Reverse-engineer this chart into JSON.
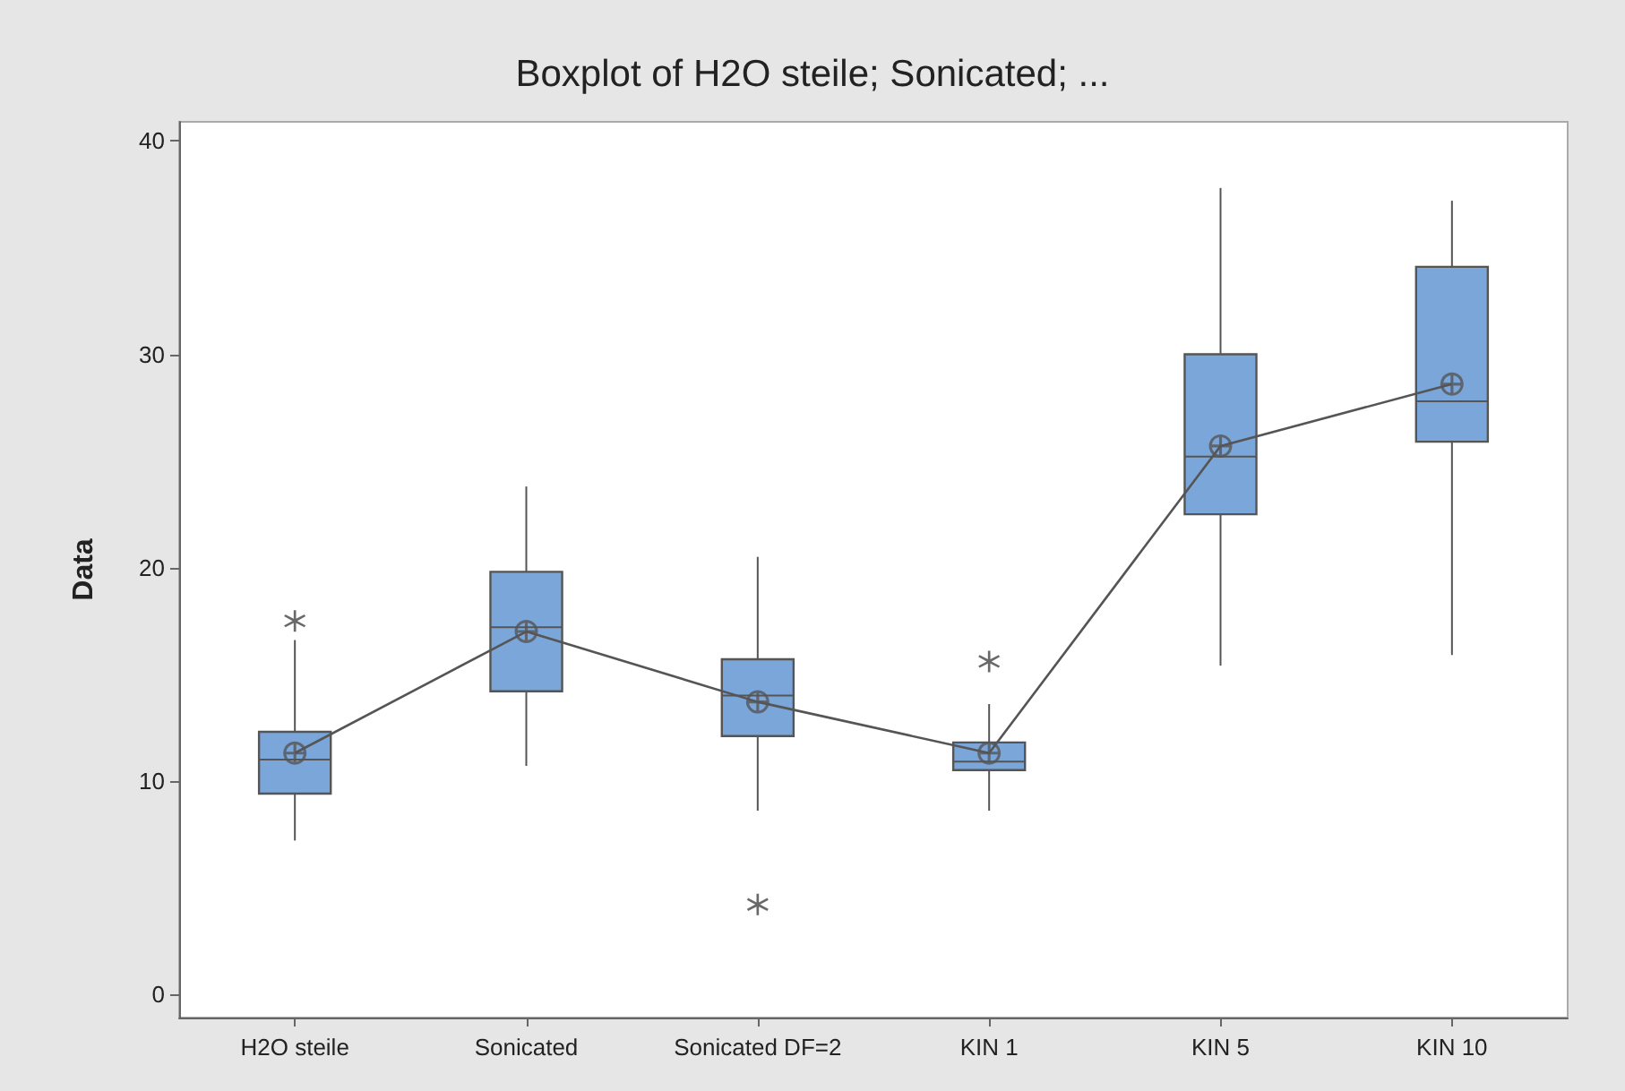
{
  "chart_data": {
    "type": "box",
    "title": "Boxplot of H2O steile; Sonicated; ...",
    "ylabel": "Data",
    "categories": [
      "H2O steile",
      "Sonicated",
      "Sonicated DF=2",
      "KIN 1",
      "KIN 5",
      "KIN 10"
    ],
    "color": "#7ba6d9",
    "boxes": [
      {
        "low": 7.2,
        "q1": 9.4,
        "median": 11.0,
        "q3": 12.3,
        "high": 16.6,
        "mean": 11.3,
        "outliers": [
          17.5
        ]
      },
      {
        "low": 10.7,
        "q1": 14.2,
        "median": 17.2,
        "q3": 19.8,
        "high": 23.8,
        "mean": 17.0
      },
      {
        "low": 8.6,
        "q1": 12.1,
        "median": 14.0,
        "q3": 15.7,
        "high": 20.5,
        "mean": 13.7,
        "outliers": [
          4.2
        ]
      },
      {
        "low": 8.6,
        "q1": 10.5,
        "median": 10.9,
        "q3": 11.8,
        "high": 13.6,
        "mean": 11.3,
        "outliers": [
          15.6
        ]
      },
      {
        "low": 15.4,
        "q1": 22.5,
        "median": 25.2,
        "q3": 30.0,
        "high": 37.8,
        "mean": 25.7
      },
      {
        "low": 15.9,
        "q1": 25.9,
        "median": 27.8,
        "q3": 34.1,
        "high": 37.2,
        "mean": 28.6
      }
    ],
    "series": [
      {
        "type": "line",
        "color": "#555555",
        "marker": "none",
        "x": [
          "H2O steile",
          "Sonicated",
          "Sonicated DF=2",
          "KIN 1",
          "KIN 5",
          "KIN 10"
        ],
        "values": [
          11.3,
          17.0,
          13.7,
          11.3,
          25.7,
          28.6
        ]
      }
    ],
    "ylim": [
      -1.1,
      40.9
    ],
    "yticks": [
      0,
      10,
      20,
      30,
      40
    ]
  }
}
